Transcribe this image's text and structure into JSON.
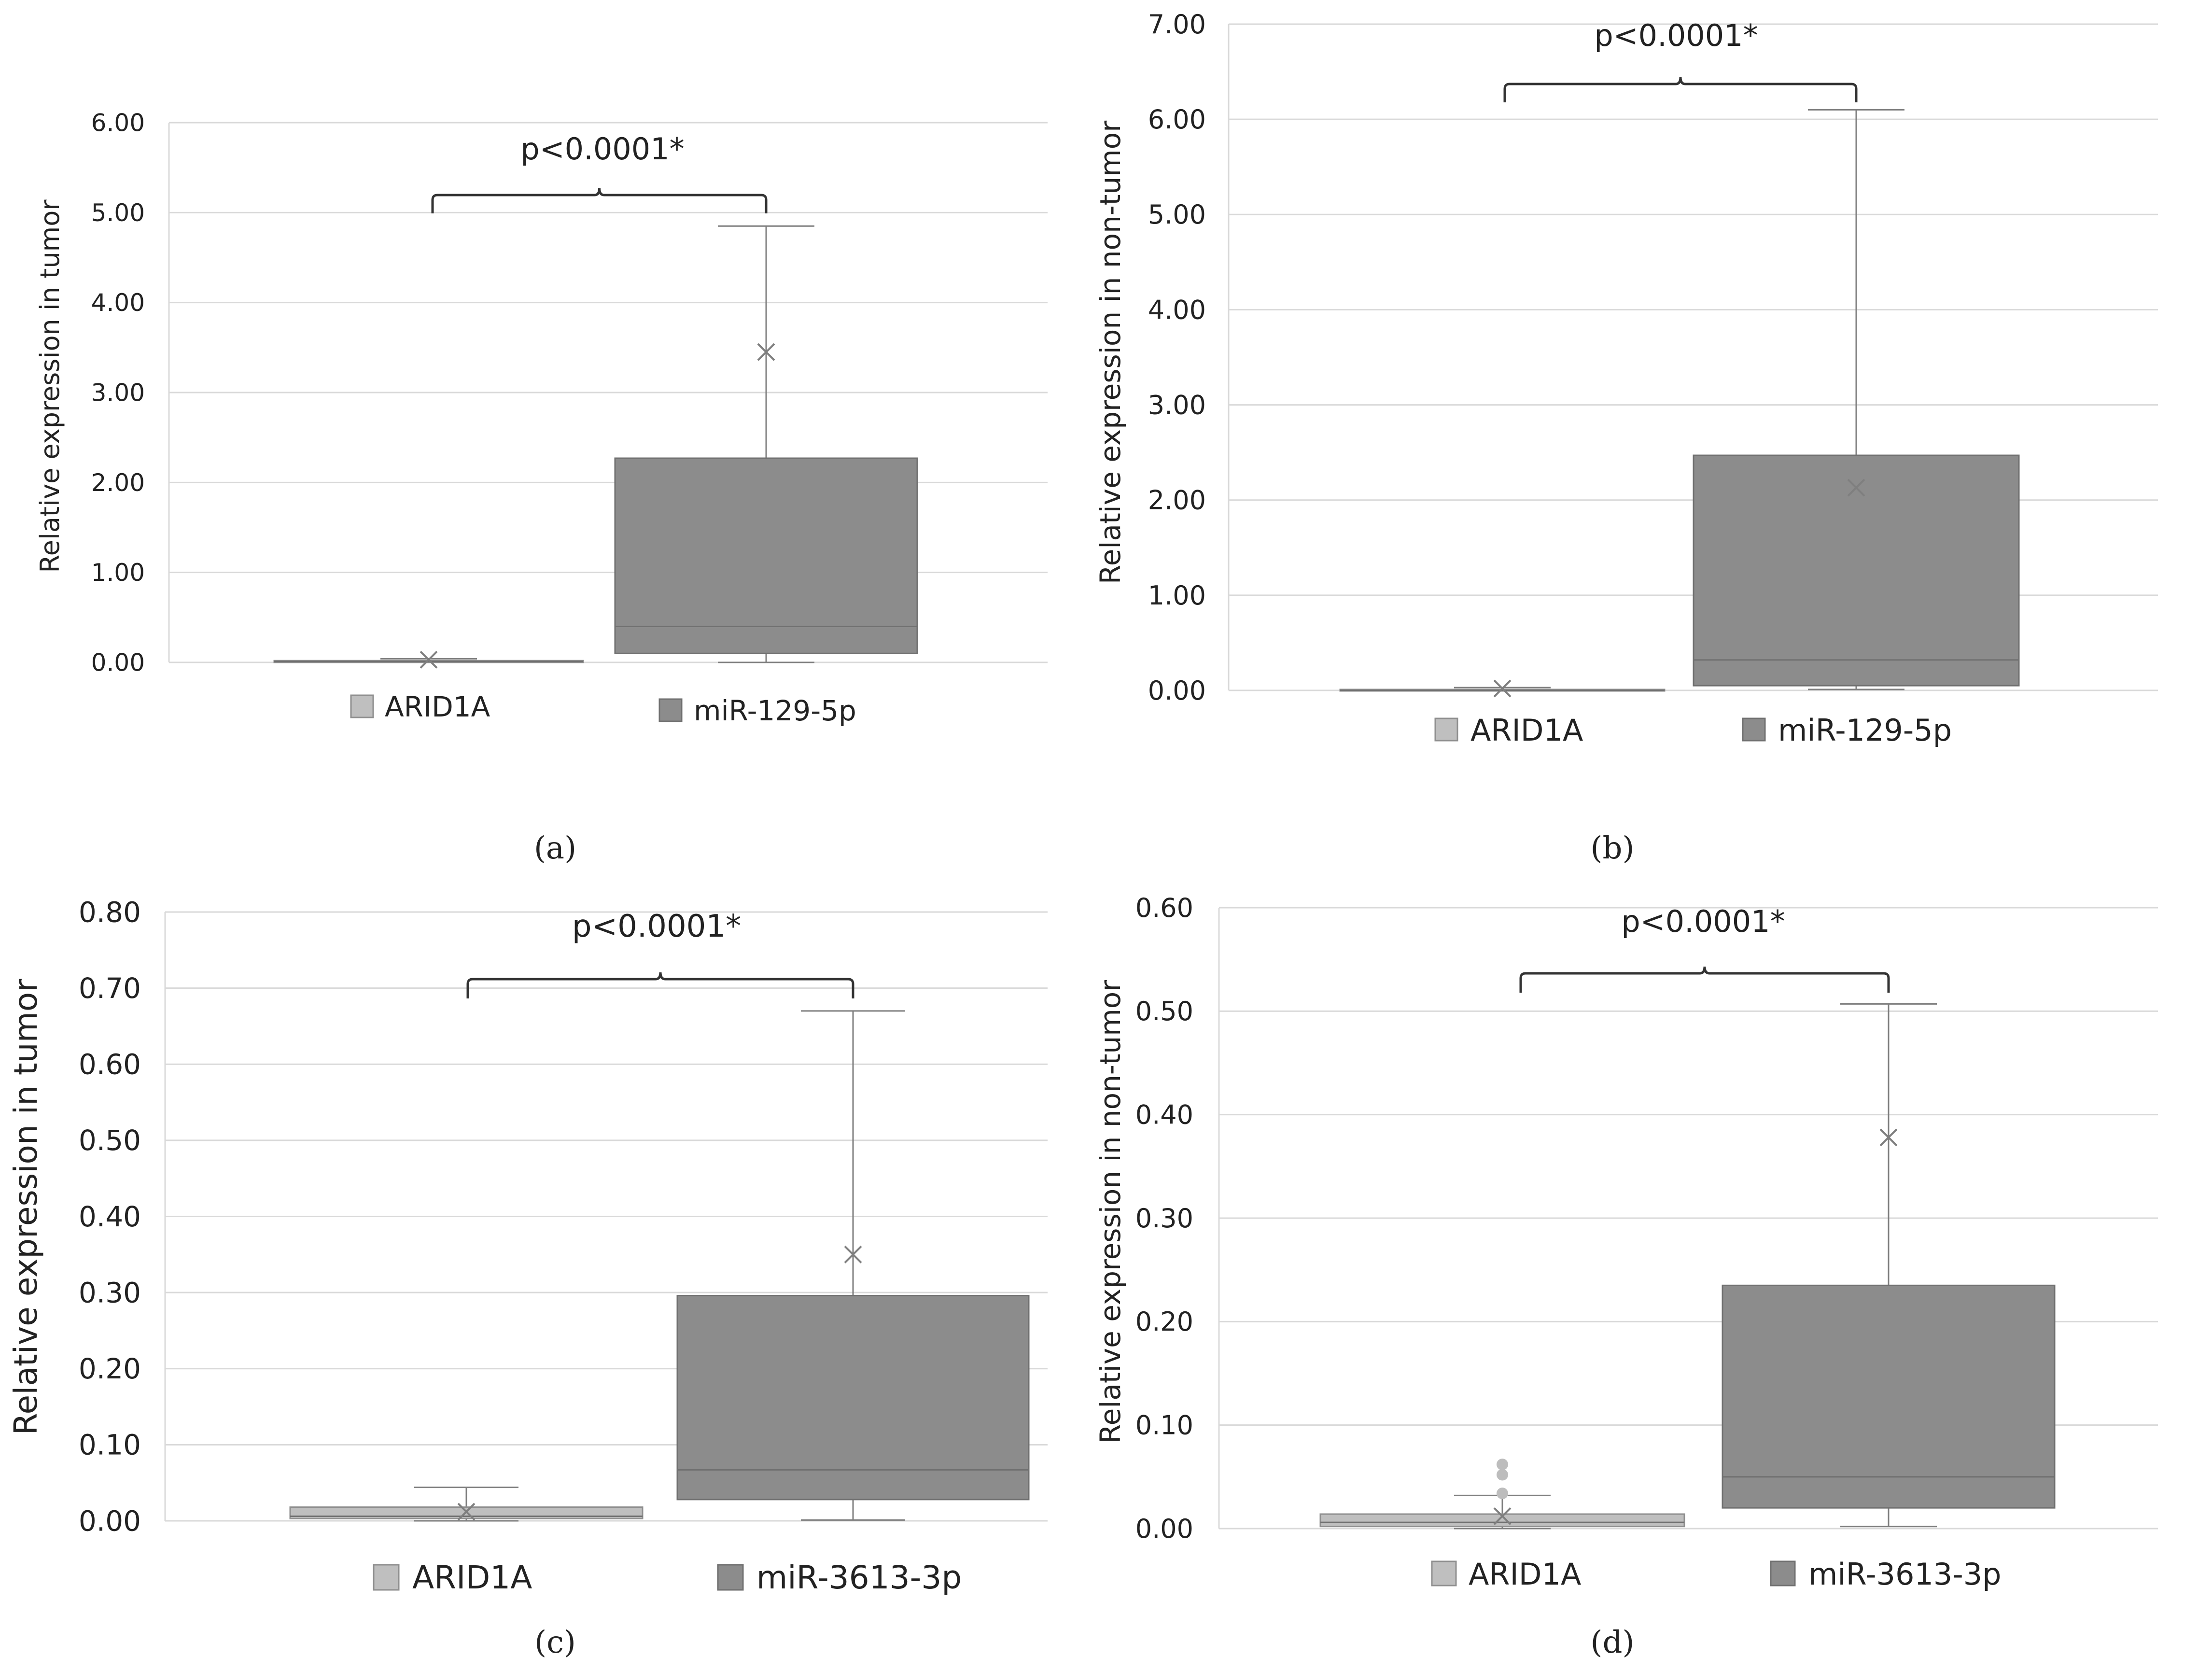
{
  "colors": {
    "grid": "#d9d9d9",
    "axis": "#d9d9d9",
    "box_light": "#bfbfbf",
    "box_dark": "#8c8c8c",
    "box_stroke_light": "#8f8f8f",
    "box_stroke_dark": "#707070",
    "whisker": "#7f7f7f",
    "mean_marker": "#7f7f7f",
    "text": "#222222",
    "outlier": "#bdbdbd"
  },
  "chart_data": [
    {
      "panel": "a",
      "caption": "(a)",
      "type": "boxplot",
      "ylabel": "Relative expression in tumor",
      "ylim": [
        0,
        6
      ],
      "yticks": [
        "0.00",
        "1.00",
        "2.00",
        "3.00",
        "4.00",
        "5.00",
        "6.00"
      ],
      "annotation": "p<0.0001*",
      "series": [
        {
          "name": "ARID1A",
          "min": 0.0,
          "q1": 0.0,
          "median": 0.01,
          "q3": 0.02,
          "max": 0.04,
          "mean": 0.03,
          "outliers": []
        },
        {
          "name": "miR-129-5p",
          "min": 0.0,
          "q1": 0.1,
          "median": 0.4,
          "q3": 2.27,
          "max": 4.85,
          "mean": 3.45,
          "outliers": []
        }
      ]
    },
    {
      "panel": "b",
      "caption": "(b)",
      "type": "boxplot",
      "ylabel": "Relative expression in non-tumor",
      "ylim": [
        0,
        7
      ],
      "yticks": [
        "0.00",
        "1.00",
        "2.00",
        "3.00",
        "4.00",
        "5.00",
        "6.00",
        "7.00"
      ],
      "annotation": "p<0.0001*",
      "series": [
        {
          "name": "ARID1A",
          "min": 0.0,
          "q1": 0.0,
          "median": 0.0,
          "q3": 0.01,
          "max": 0.03,
          "mean": 0.02,
          "outliers": []
        },
        {
          "name": "miR-129-5p",
          "min": 0.01,
          "q1": 0.05,
          "median": 0.32,
          "q3": 2.47,
          "max": 6.1,
          "mean": 2.13,
          "outliers": []
        }
      ]
    },
    {
      "panel": "c",
      "caption": "(c)",
      "type": "boxplot",
      "ylabel": "Relative expression in tumor",
      "ylim": [
        0,
        0.8
      ],
      "yticks": [
        "0.00",
        "0.10",
        "0.20",
        "0.30",
        "0.40",
        "0.50",
        "0.60",
        "0.70",
        "0.80"
      ],
      "annotation": "p<0.0001*",
      "series": [
        {
          "name": "ARID1A",
          "min": 0.0,
          "q1": 0.003,
          "median": 0.006,
          "q3": 0.018,
          "max": 0.044,
          "mean": 0.012,
          "outliers": []
        },
        {
          "name": "miR-3613-3p",
          "min": 0.001,
          "q1": 0.028,
          "median": 0.067,
          "q3": 0.296,
          "max": 0.67,
          "mean": 0.35,
          "outliers": []
        }
      ]
    },
    {
      "panel": "d",
      "caption": "(d)",
      "type": "boxplot",
      "ylabel": "Relative expression in non-tumor",
      "ylim": [
        0,
        0.6
      ],
      "yticks": [
        "0.00",
        "0.10",
        "0.20",
        "0.30",
        "0.40",
        "0.50",
        "0.60"
      ],
      "annotation": "p<0.0001*",
      "series": [
        {
          "name": "ARID1A",
          "min": 0.0,
          "q1": 0.002,
          "median": 0.006,
          "q3": 0.014,
          "max": 0.032,
          "mean": 0.012,
          "outliers": [
            0.034,
            0.052,
            0.062
          ]
        },
        {
          "name": "miR-3613-3p",
          "min": 0.002,
          "q1": 0.02,
          "median": 0.05,
          "q3": 0.235,
          "max": 0.507,
          "mean": 0.378,
          "outliers": []
        }
      ]
    }
  ]
}
